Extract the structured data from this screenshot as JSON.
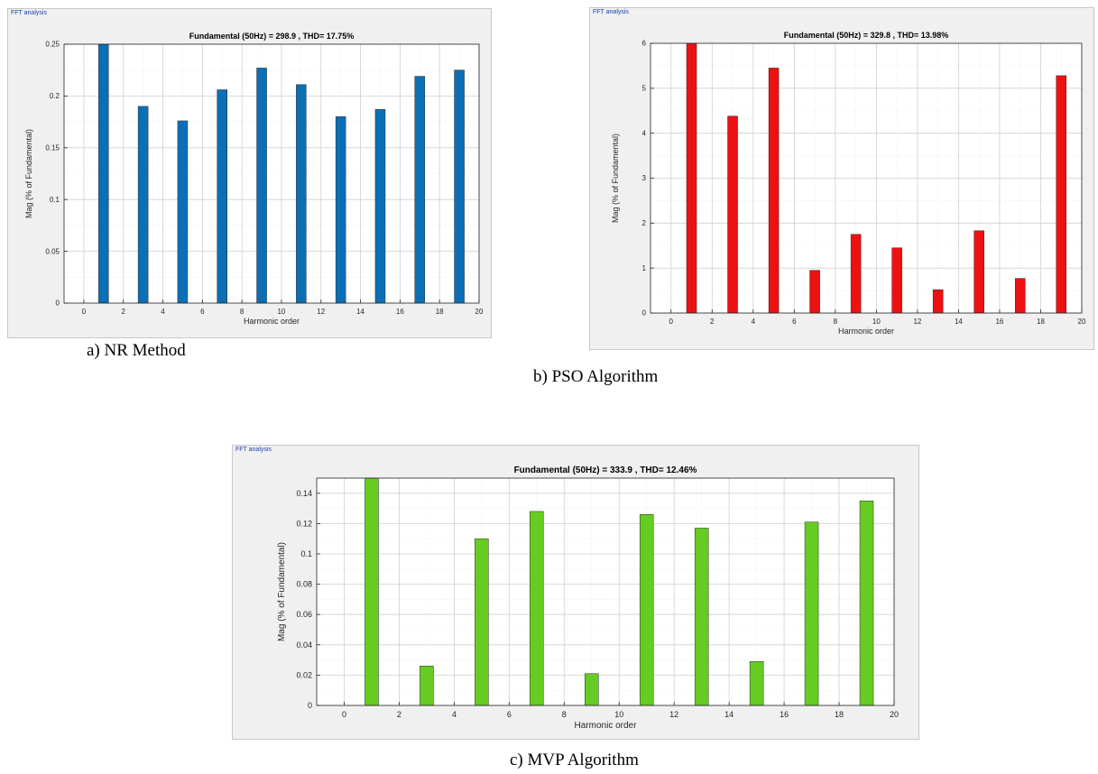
{
  "chart_data": [
    {
      "type": "bar",
      "panel_label": "FFT analysis",
      "title": "Fundamental (50Hz) = 298.9 , THD= 17.75%",
      "xlabel": "Harmonic order",
      "ylabel": "Mag (% of Fundamental)",
      "xlim": [
        -1,
        20
      ],
      "ylim": [
        0,
        0.25
      ],
      "xticks": [
        0,
        2,
        4,
        6,
        8,
        10,
        12,
        14,
        16,
        18,
        20
      ],
      "yticks": [
        0,
        0.05,
        0.1,
        0.15,
        0.2,
        0.25
      ],
      "x": [
        1,
        3,
        5,
        7,
        9,
        11,
        13,
        15,
        17,
        19
      ],
      "values": [
        0.25,
        0.19,
        0.176,
        0.206,
        0.227,
        0.211,
        0.18,
        0.187,
        0.219,
        0.225
      ],
      "bar_color": "#0b6fb6",
      "grid": true,
      "caption": "a)    NR Method"
    },
    {
      "type": "bar",
      "panel_label": "FFT analysis",
      "title": "Fundamental (50Hz) = 329.8 , THD= 13.98%",
      "xlabel": "Harmonic order",
      "ylabel": "Mag (% of Fundamental)",
      "xlim": [
        -1,
        20
      ],
      "ylim": [
        0,
        6
      ],
      "xticks": [
        0,
        2,
        4,
        6,
        8,
        10,
        12,
        14,
        16,
        18,
        20
      ],
      "yticks": [
        0,
        1,
        2,
        3,
        4,
        5,
        6
      ],
      "x": [
        1,
        3,
        5,
        7,
        9,
        11,
        13,
        15,
        17,
        19
      ],
      "values": [
        6.0,
        4.38,
        5.45,
        0.95,
        1.75,
        1.45,
        0.52,
        1.83,
        0.77,
        5.28
      ],
      "bar_color": "#ee1111",
      "grid": true,
      "caption": "b) PSO Algorithm"
    },
    {
      "type": "bar",
      "panel_label": "FFT analysis",
      "title": "Fundamental (50Hz) = 333.9 , THD= 12.46%",
      "xlabel": "Harmonic order",
      "ylabel": "Mag (% of Fundamental)",
      "xlim": [
        -1,
        20
      ],
      "ylim": [
        0,
        0.15
      ],
      "xticks": [
        0,
        2,
        4,
        6,
        8,
        10,
        12,
        14,
        16,
        18,
        20
      ],
      "yticks": [
        0,
        0.02,
        0.04,
        0.06,
        0.08,
        0.1,
        0.12,
        0.14
      ],
      "x": [
        1,
        3,
        5,
        7,
        9,
        11,
        13,
        15,
        17,
        19
      ],
      "values": [
        0.15,
        0.026,
        0.11,
        0.128,
        0.021,
        0.126,
        0.117,
        0.029,
        0.121,
        0.135
      ],
      "bar_color": "#66cc22",
      "grid": true,
      "caption": "c) MVP Algorithm"
    }
  ]
}
